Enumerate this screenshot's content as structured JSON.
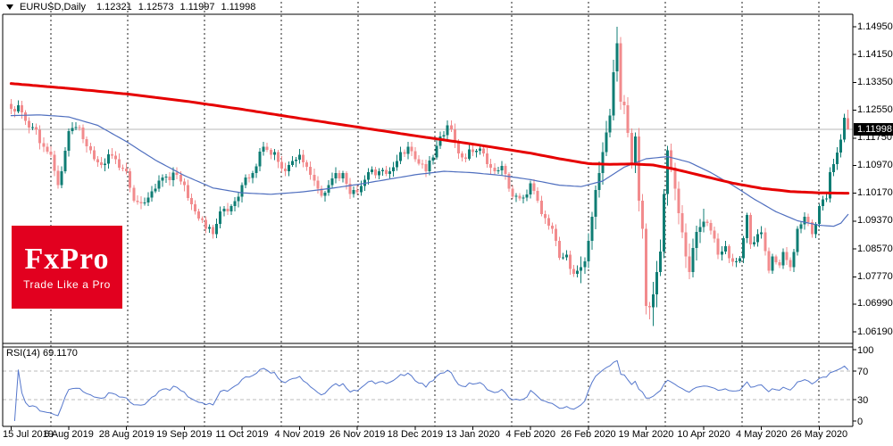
{
  "title": {
    "symbol": "EURUSD,Daily",
    "open": "1.12321",
    "high": "1.12573",
    "low": "1.11997",
    "close": "1.11998"
  },
  "logo": {
    "brand": "FxPro",
    "tagline": "Trade Like a Pro",
    "bg_color": "#e2001f"
  },
  "chart_data": {
    "type": "candlestick",
    "symbol": "EURUSD",
    "timeframe": "Daily",
    "title": "EURUSD,Daily 1.12321 1.12573 1.11997 1.11998",
    "ylim": [
      1.0619,
      1.1495
    ],
    "grid": "vertical-dashed",
    "legend_position": "none",
    "price_badge": "1.11998",
    "current_price": 1.11998,
    "candle_count": 233,
    "y_tick_labels": [
      "1.14950",
      "1.14150",
      "1.13350",
      "1.12550",
      "1.11750",
      "1.10970",
      "1.10170",
      "1.09370",
      "1.08570",
      "1.07770",
      "1.06990",
      "1.06190"
    ],
    "x_tick_labels": [
      "15 Jul 2019",
      "6 Aug 2019",
      "28 Aug 2019",
      "19 Sep 2019",
      "11 Oct 2019",
      "4 Nov 2019",
      "26 Nov 2019",
      "18 Dec 2019",
      "13 Jan 2020",
      "4 Feb 2020",
      "26 Feb 2020",
      "19 Mar 2020",
      "10 Apr 2020",
      "4 May 2020",
      "26 May 2020"
    ],
    "x_tick_candle_indices": [
      0,
      16,
      32,
      48,
      64,
      80,
      96,
      112,
      128,
      144,
      160,
      176,
      192,
      208,
      224
    ],
    "close_anchors": [
      [
        0,
        1.1259
      ],
      [
        2,
        1.127
      ],
      [
        4,
        1.1225
      ],
      [
        6,
        1.1207
      ],
      [
        9,
        1.115
      ],
      [
        11,
        1.1128
      ],
      [
        13,
        1.104
      ],
      [
        14,
        1.108
      ],
      [
        16,
        1.1195
      ],
      [
        19,
        1.1205
      ],
      [
        22,
        1.114
      ],
      [
        25,
        1.1098
      ],
      [
        28,
        1.1125
      ],
      [
        30,
        1.109
      ],
      [
        32,
        1.108
      ],
      [
        34,
        1.0995
      ],
      [
        37,
        1.099
      ],
      [
        40,
        1.103
      ],
      [
        43,
        1.1065
      ],
      [
        46,
        1.107
      ],
      [
        48,
        1.104
      ],
      [
        50,
        1.0985
      ],
      [
        53,
        1.094
      ],
      [
        56,
        1.09
      ],
      [
        58,
        1.0965
      ],
      [
        61,
        1.098
      ],
      [
        64,
        1.104
      ],
      [
        67,
        1.1075
      ],
      [
        70,
        1.115
      ],
      [
        73,
        1.1135
      ],
      [
        76,
        1.108
      ],
      [
        78,
        1.111
      ],
      [
        80,
        1.1127
      ],
      [
        83,
        1.107
      ],
      [
        86,
        1.101
      ],
      [
        89,
        1.106
      ],
      [
        92,
        1.1075
      ],
      [
        94,
        1.1015
      ],
      [
        96,
        1.102
      ],
      [
        99,
        1.1078
      ],
      [
        102,
        1.108
      ],
      [
        105,
        1.108
      ],
      [
        108,
        1.1135
      ],
      [
        110,
        1.115
      ],
      [
        112,
        1.1115
      ],
      [
        115,
        1.108
      ],
      [
        117,
        1.112
      ],
      [
        119,
        1.118
      ],
      [
        121,
        1.1212
      ],
      [
        123,
        1.1165
      ],
      [
        125,
        1.112
      ],
      [
        128,
        1.1135
      ],
      [
        130,
        1.1145
      ],
      [
        133,
        1.109
      ],
      [
        136,
        1.1095
      ],
      [
        138,
        1.103
      ],
      [
        140,
        1.101
      ],
      [
        142,
        1.1005
      ],
      [
        144,
        1.1045
      ],
      [
        146,
        1.0995
      ],
      [
        148,
        1.0945
      ],
      [
        150,
        1.0915
      ],
      [
        152,
        1.0832
      ],
      [
        154,
        1.084
      ],
      [
        156,
        1.0785
      ],
      [
        158,
        1.0805
      ],
      [
        160,
        1.088
      ],
      [
        161,
        1.095
      ],
      [
        162,
        1.1026
      ],
      [
        164,
        1.1135
      ],
      [
        166,
        1.124
      ],
      [
        167,
        1.1365
      ],
      [
        168,
        1.1448
      ],
      [
        169,
        1.128
      ],
      [
        170,
        1.127
      ],
      [
        171,
        1.119
      ],
      [
        172,
        1.1105
      ],
      [
        173,
        1.118
      ],
      [
        174,
        1.0995
      ],
      [
        175,
        1.0915
      ],
      [
        176,
        1.0693
      ],
      [
        177,
        1.069
      ],
      [
        178,
        1.0727
      ],
      [
        179,
        1.079
      ],
      [
        180,
        1.085
      ],
      [
        181,
        1.1015
      ],
      [
        182,
        1.114
      ],
      [
        183,
        1.109
      ],
      [
        184,
        1.103
      ],
      [
        185,
        1.096
      ],
      [
        186,
        1.0905
      ],
      [
        187,
        1.0835
      ],
      [
        188,
        1.079
      ],
      [
        189,
        1.086
      ],
      [
        191,
        1.092
      ],
      [
        192,
        1.0935
      ],
      [
        194,
        1.091
      ],
      [
        196,
        1.084
      ],
      [
        198,
        1.0865
      ],
      [
        200,
        1.082
      ],
      [
        202,
        1.083
      ],
      [
        204,
        1.0955
      ],
      [
        205,
        1.087
      ],
      [
        207,
        1.09
      ],
      [
        208,
        1.0905
      ],
      [
        210,
        1.0795
      ],
      [
        211,
        1.0835
      ],
      [
        213,
        1.081
      ],
      [
        214,
        1.0848
      ],
      [
        216,
        1.0805
      ],
      [
        218,
        1.0915
      ],
      [
        220,
        1.095
      ],
      [
        222,
        1.09
      ],
      [
        224,
        1.098
      ],
      [
        226,
        1.1002
      ],
      [
        227,
        1.1077
      ],
      [
        228,
        1.1101
      ],
      [
        229,
        1.1134
      ],
      [
        230,
        1.1171
      ],
      [
        231,
        1.1234
      ],
      [
        232,
        1.11998
      ]
    ],
    "special_candles": {
      "168": [
        1.1367,
        1.1495,
        1.1337,
        1.1448
      ],
      "178": [
        1.069,
        1.0762,
        1.0636,
        1.0727
      ],
      "232": [
        1.12321,
        1.12573,
        1.11997,
        1.11998
      ]
    },
    "ma_slow": {
      "name": "SMA-slow (red)",
      "color": "#e60000",
      "width": 3,
      "anchors": [
        [
          0,
          1.1332
        ],
        [
          16,
          1.1318
        ],
        [
          32,
          1.1302
        ],
        [
          48,
          1.1282
        ],
        [
          64,
          1.1258
        ],
        [
          80,
          1.1232
        ],
        [
          96,
          1.1207
        ],
        [
          112,
          1.1182
        ],
        [
          128,
          1.1158
        ],
        [
          144,
          1.1132
        ],
        [
          152,
          1.1116
        ],
        [
          160,
          1.1102
        ],
        [
          166,
          1.11
        ],
        [
          172,
          1.1101
        ],
        [
          178,
          1.1098
        ],
        [
          184,
          1.1086
        ],
        [
          192,
          1.1066
        ],
        [
          200,
          1.1046
        ],
        [
          208,
          1.1031
        ],
        [
          216,
          1.1022
        ],
        [
          224,
          1.1018
        ],
        [
          232,
          1.1017
        ]
      ]
    },
    "ma_fast": {
      "name": "SMA-fast (blue)",
      "color": "#4f6fbf",
      "width": 1.2,
      "anchors": [
        [
          0,
          1.124
        ],
        [
          8,
          1.1242
        ],
        [
          16,
          1.1236
        ],
        [
          24,
          1.1212
        ],
        [
          32,
          1.1165
        ],
        [
          40,
          1.1112
        ],
        [
          48,
          1.1068
        ],
        [
          56,
          1.1032
        ],
        [
          64,
          1.1018
        ],
        [
          72,
          1.1014
        ],
        [
          80,
          1.102
        ],
        [
          88,
          1.103
        ],
        [
          96,
          1.1042
        ],
        [
          104,
          1.1056
        ],
        [
          112,
          1.107
        ],
        [
          120,
          1.108
        ],
        [
          128,
          1.1076
        ],
        [
          136,
          1.1068
        ],
        [
          144,
          1.1056
        ],
        [
          152,
          1.104
        ],
        [
          158,
          1.1036
        ],
        [
          164,
          1.1052
        ],
        [
          170,
          1.1092
        ],
        [
          176,
          1.1116
        ],
        [
          182,
          1.1122
        ],
        [
          188,
          1.1106
        ],
        [
          194,
          1.1076
        ],
        [
          200,
          1.104
        ],
        [
          206,
          1.1
        ],
        [
          212,
          1.0964
        ],
        [
          218,
          1.0938
        ],
        [
          224,
          1.0925
        ],
        [
          228,
          1.0922
        ],
        [
          230,
          1.0931
        ],
        [
          232,
          1.0956
        ]
      ]
    },
    "rsi": {
      "label": "RSI(14) 69.1170",
      "period": 14,
      "last_value": 69.117,
      "levels": [
        30,
        70
      ],
      "scale_labels": [
        "100",
        "70",
        "30",
        "0"
      ],
      "color": "#5577cc"
    },
    "colors": {
      "up_candle": "#0f7d74",
      "down_candle": "#f28b8d",
      "grid": "#222222",
      "price_line": "#b8b8b8",
      "rsi_level_line": "#bbbbbb",
      "badge_bg": "#000000",
      "badge_text": "#ffffff",
      "border": "#000000",
      "background": "#ffffff"
    }
  }
}
